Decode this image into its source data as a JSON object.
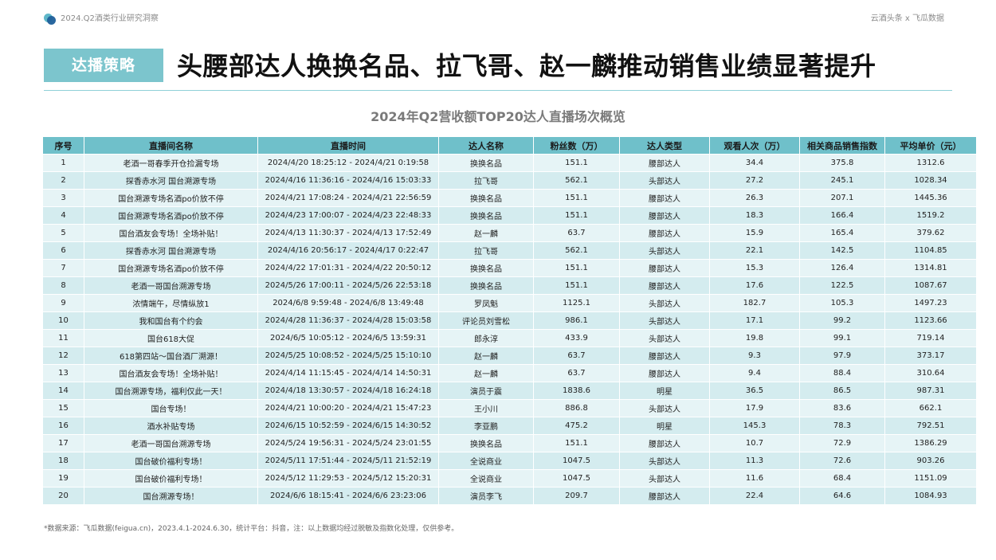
{
  "header": {
    "report_title": "2024.Q2酒类行业研究洞察",
    "source_brand": "云酒头条 x 飞瓜数据",
    "logo_icon": "blue-bubble-logo-icon"
  },
  "section": {
    "tag": "达播策略",
    "headline": "头腰部达人换换名品、拉飞哥、赵一麟推动销售业绩显著提升"
  },
  "table": {
    "title": "2024年Q2营收额TOP20达人直播场次概览",
    "columns": [
      "序号",
      "直播间名称",
      "直播时间",
      "达人名称",
      "粉丝数（万）",
      "达人类型",
      "观看人次（万）",
      "相关商品销售指数",
      "平均单价（元）"
    ],
    "rows": [
      [
        "1",
        "老酒一哥春季开仓捡漏专场",
        "2024/4/20 18:25:12 - 2024/4/21 0:19:58",
        "换换名品",
        "151.1",
        "腰部达人",
        "34.4",
        "375.8",
        "1312.6"
      ],
      [
        "2",
        "探香赤水河 国台溯源专场",
        "2024/4/16 11:36:16 - 2024/4/16 15:03:33",
        "拉飞哥",
        "562.1",
        "头部达人",
        "27.2",
        "245.1",
        "1028.34"
      ],
      [
        "3",
        "国台溯源专场名酒po价放不停",
        "2024/4/21 17:08:24 - 2024/4/21 22:56:59",
        "换换名品",
        "151.1",
        "腰部达人",
        "26.3",
        "207.1",
        "1445.36"
      ],
      [
        "4",
        "国台溯源专场名酒po价放不停",
        "2024/4/23 17:00:07 - 2024/4/23 22:48:33",
        "换换名品",
        "151.1",
        "腰部达人",
        "18.3",
        "166.4",
        "1519.2"
      ],
      [
        "5",
        "国台酒友会专场！全场补贴！",
        "2024/4/13 11:30:37 - 2024/4/13 17:52:49",
        "赵一麟",
        "63.7",
        "腰部达人",
        "15.9",
        "165.4",
        "379.62"
      ],
      [
        "6",
        "探香赤水河 国台溯源专场",
        "2024/4/16 20:56:17 - 2024/4/17 0:22:47",
        "拉飞哥",
        "562.1",
        "头部达人",
        "22.1",
        "142.5",
        "1104.85"
      ],
      [
        "7",
        "国台溯源专场名酒po价放不停",
        "2024/4/22 17:01:31 - 2024/4/22 20:50:12",
        "换换名品",
        "151.1",
        "腰部达人",
        "15.3",
        "126.4",
        "1314.81"
      ],
      [
        "8",
        "老酒一哥国台溯源专场",
        "2024/5/26 17:00:11 - 2024/5/26 22:53:18",
        "换换名品",
        "151.1",
        "腰部达人",
        "17.6",
        "122.5",
        "1087.67"
      ],
      [
        "9",
        "浓情端午，尽情纵放1",
        "2024/6/8 9:59:48 - 2024/6/8 13:49:48",
        "罗凤魁",
        "1125.1",
        "头部达人",
        "182.7",
        "105.3",
        "1497.23"
      ],
      [
        "10",
        "我和国台有个约会",
        "2024/4/28 11:36:37 - 2024/4/28 15:03:58",
        "评论员刘雪松",
        "986.1",
        "头部达人",
        "17.1",
        "99.2",
        "1123.66"
      ],
      [
        "11",
        "国台618大促",
        "2024/6/5 10:05:12 - 2024/6/5 13:59:31",
        "郎永淳",
        "433.9",
        "头部达人",
        "19.8",
        "99.1",
        "719.14"
      ],
      [
        "12",
        "618第四站～国台酒厂溯源！",
        "2024/5/25 10:08:52 - 2024/5/25 15:10:10",
        "赵一麟",
        "63.7",
        "腰部达人",
        "9.3",
        "97.9",
        "373.17"
      ],
      [
        "13",
        "国台酒友会专场！全场补贴！",
        "2024/4/14 11:15:45 - 2024/4/14 14:50:31",
        "赵一麟",
        "63.7",
        "腰部达人",
        "9.4",
        "88.4",
        "310.64"
      ],
      [
        "14",
        "国台溯源专场，福利仅此一天！",
        "2024/4/18 13:30:57 - 2024/4/18 16:24:18",
        "演员于震",
        "1838.6",
        "明星",
        "36.5",
        "86.5",
        "987.31"
      ],
      [
        "15",
        "国台专场！",
        "2024/4/21 10:00:20 - 2024/4/21 15:47:23",
        "王小川",
        "886.8",
        "头部达人",
        "17.9",
        "83.6",
        "662.1"
      ],
      [
        "16",
        "酒水补贴专场",
        "2024/6/15 10:52:59 - 2024/6/15 14:30:52",
        "李亚鹏",
        "475.2",
        "明星",
        "145.3",
        "78.3",
        "792.51"
      ],
      [
        "17",
        "老酒一哥国台溯源专场",
        "2024/5/24 19:56:31 - 2024/5/24 23:01:55",
        "换换名品",
        "151.1",
        "腰部达人",
        "10.7",
        "72.9",
        "1386.29"
      ],
      [
        "18",
        "国台破价福利专场！",
        "2024/5/11 17:51:44 - 2024/5/11 21:52:19",
        "全说商业",
        "1047.5",
        "头部达人",
        "11.3",
        "72.6",
        "903.26"
      ],
      [
        "19",
        "国台破价福利专场！",
        "2024/5/12 11:29:53 - 2024/5/12 15:20:31",
        "全说商业",
        "1047.5",
        "头部达人",
        "11.6",
        "68.4",
        "1151.09"
      ],
      [
        "20",
        "国台溯源专场！",
        "2024/6/6 18:15:41 - 2024/6/6 23:23:06",
        "演员李飞",
        "209.7",
        "腰部达人",
        "22.4",
        "64.6",
        "1084.93"
      ]
    ]
  },
  "footnote": "*数据来源：飞瓜数据(feigua.cn)，2023.4.1-2024.6.30，统计平台：抖音，注：以上数据均经过脱敏及指数化处理，仅供参考。"
}
